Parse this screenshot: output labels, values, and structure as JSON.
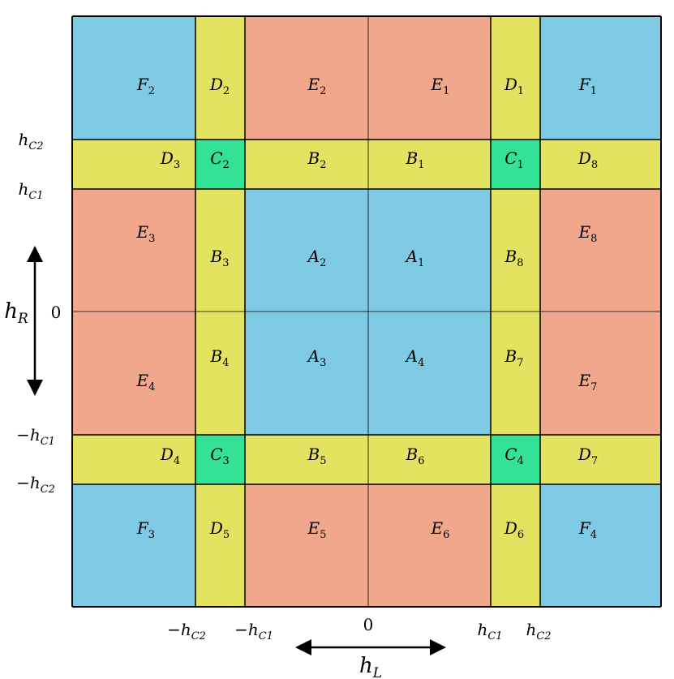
{
  "colors": {
    "A": "#7ecae4",
    "B": "#e4e261",
    "C": "#33e294",
    "D": "#e4e261",
    "E": "#f0a78b",
    "F": "#7ecae4"
  },
  "regions": {
    "F2": {
      "letter": "F",
      "sub": "2"
    },
    "D2": {
      "letter": "D",
      "sub": "2"
    },
    "E2": {
      "letter": "E",
      "sub": "2"
    },
    "E1": {
      "letter": "E",
      "sub": "1"
    },
    "D1": {
      "letter": "D",
      "sub": "1"
    },
    "F1": {
      "letter": "F",
      "sub": "1"
    },
    "D3": {
      "letter": "D",
      "sub": "3"
    },
    "C2": {
      "letter": "C",
      "sub": "2"
    },
    "B2": {
      "letter": "B",
      "sub": "2"
    },
    "B1": {
      "letter": "B",
      "sub": "1"
    },
    "C1": {
      "letter": "C",
      "sub": "1"
    },
    "D8": {
      "letter": "D",
      "sub": "8"
    },
    "E3": {
      "letter": "E",
      "sub": "3"
    },
    "B3": {
      "letter": "B",
      "sub": "3"
    },
    "A2": {
      "letter": "A",
      "sub": "2"
    },
    "A1": {
      "letter": "A",
      "sub": "1"
    },
    "B8": {
      "letter": "B",
      "sub": "8"
    },
    "E8": {
      "letter": "E",
      "sub": "8"
    },
    "E4": {
      "letter": "E",
      "sub": "4"
    },
    "B4": {
      "letter": "B",
      "sub": "4"
    },
    "A3": {
      "letter": "A",
      "sub": "3"
    },
    "A4": {
      "letter": "A",
      "sub": "4"
    },
    "B7": {
      "letter": "B",
      "sub": "7"
    },
    "E7": {
      "letter": "E",
      "sub": "7"
    },
    "D4": {
      "letter": "D",
      "sub": "4"
    },
    "C3": {
      "letter": "C",
      "sub": "3"
    },
    "B5": {
      "letter": "B",
      "sub": "5"
    },
    "B6": {
      "letter": "B",
      "sub": "6"
    },
    "C4": {
      "letter": "C",
      "sub": "4"
    },
    "D7": {
      "letter": "D",
      "sub": "7"
    },
    "F3": {
      "letter": "F",
      "sub": "3"
    },
    "D5": {
      "letter": "D",
      "sub": "5"
    },
    "E5": {
      "letter": "E",
      "sub": "5"
    },
    "E6": {
      "letter": "E",
      "sub": "6"
    },
    "D6": {
      "letter": "D",
      "sub": "6"
    },
    "F4": {
      "letter": "F",
      "sub": "4"
    }
  },
  "axes": {
    "y_ticks": {
      "hC2": {
        "sign": "",
        "main": "h",
        "sub": "C2"
      },
      "hC1": {
        "sign": "",
        "main": "h",
        "sub": "C1"
      },
      "zero": {
        "text": "0"
      },
      "mhC1": {
        "sign": "−",
        "main": "h",
        "sub": "C1"
      },
      "mhC2": {
        "sign": "−",
        "main": "h",
        "sub": "C2"
      }
    },
    "x_ticks": {
      "mhC2": {
        "sign": "−",
        "main": "h",
        "sub": "C2"
      },
      "mhC1": {
        "sign": "−",
        "main": "h",
        "sub": "C1"
      },
      "zero": {
        "text": "0"
      },
      "hC1": {
        "sign": "",
        "main": "h",
        "sub": "C1"
      },
      "hC2": {
        "sign": "",
        "main": "h",
        "sub": "C2"
      }
    },
    "x_label": {
      "main": "h",
      "sub": "L"
    },
    "y_label": {
      "main": "h",
      "sub": "R"
    }
  }
}
